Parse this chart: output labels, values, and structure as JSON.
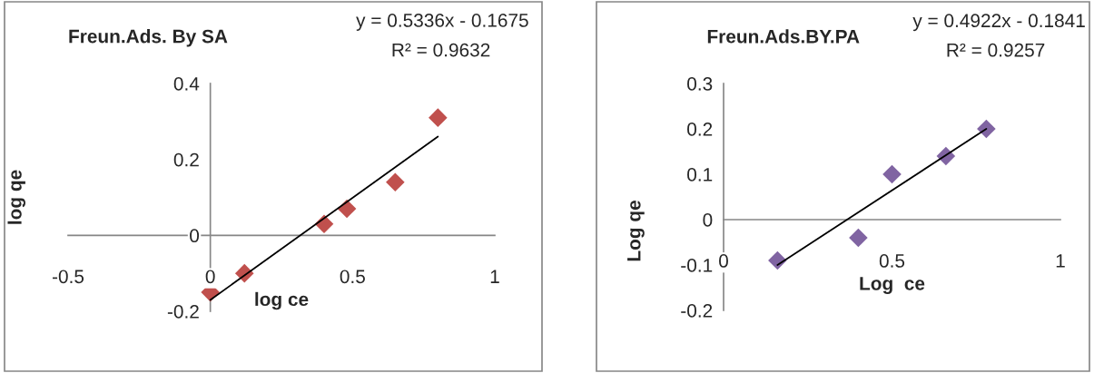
{
  "chart_data": [
    {
      "type": "scatter",
      "title": "Freun.Ads. By SA",
      "xlabel": "log ce",
      "ylabel": "log qe",
      "annotations": [
        "y = 0.5336x - 0.1675",
        "R² = 0.9632"
      ],
      "xlim": [
        -0.5,
        1
      ],
      "xticks": [
        -0.5,
        0,
        0.5,
        1
      ],
      "ylim": [
        -0.2,
        0.4
      ],
      "yticks": [
        -0.2,
        0,
        0.2,
        0.4
      ],
      "grid": false,
      "legend": false,
      "marker": "diamond",
      "series": [
        {
          "color": "#c0504d",
          "x": [
            0,
            0.12,
            0.4,
            0.48,
            0.65,
            0.8
          ],
          "values": [
            -0.15,
            -0.1,
            0.03,
            0.07,
            0.14,
            0.31
          ]
        },
        {
          "type": "line",
          "marker": "none",
          "color": "#000000",
          "x": [
            0,
            0.8
          ],
          "values": [
            -0.17,
            0.26
          ]
        }
      ]
    },
    {
      "type": "scatter",
      "title": "Freun.Ads.BY.PA",
      "xlabel": "Log  ce",
      "ylabel": "Log qe",
      "annotations": [
        "y = 0.4922x - 0.1841",
        "R² = 0.9257"
      ],
      "xlim": [
        0,
        1
      ],
      "xticks": [
        0,
        0.5,
        1
      ],
      "ylim": [
        -0.2,
        0.3
      ],
      "yticks": [
        -0.2,
        -0.1,
        0,
        0.1,
        0.2,
        0.3
      ],
      "grid": false,
      "legend": false,
      "marker": "diamond",
      "series": [
        {
          "color": "#8064a2",
          "x": [
            0.16,
            0.4,
            0.5,
            0.66,
            0.78
          ],
          "values": [
            -0.09,
            -0.04,
            0.1,
            0.14,
            0.2
          ]
        },
        {
          "type": "line",
          "marker": "none",
          "color": "#000000",
          "x": [
            0.16,
            0.78
          ],
          "values": [
            -0.1,
            0.2
          ]
        }
      ]
    }
  ]
}
